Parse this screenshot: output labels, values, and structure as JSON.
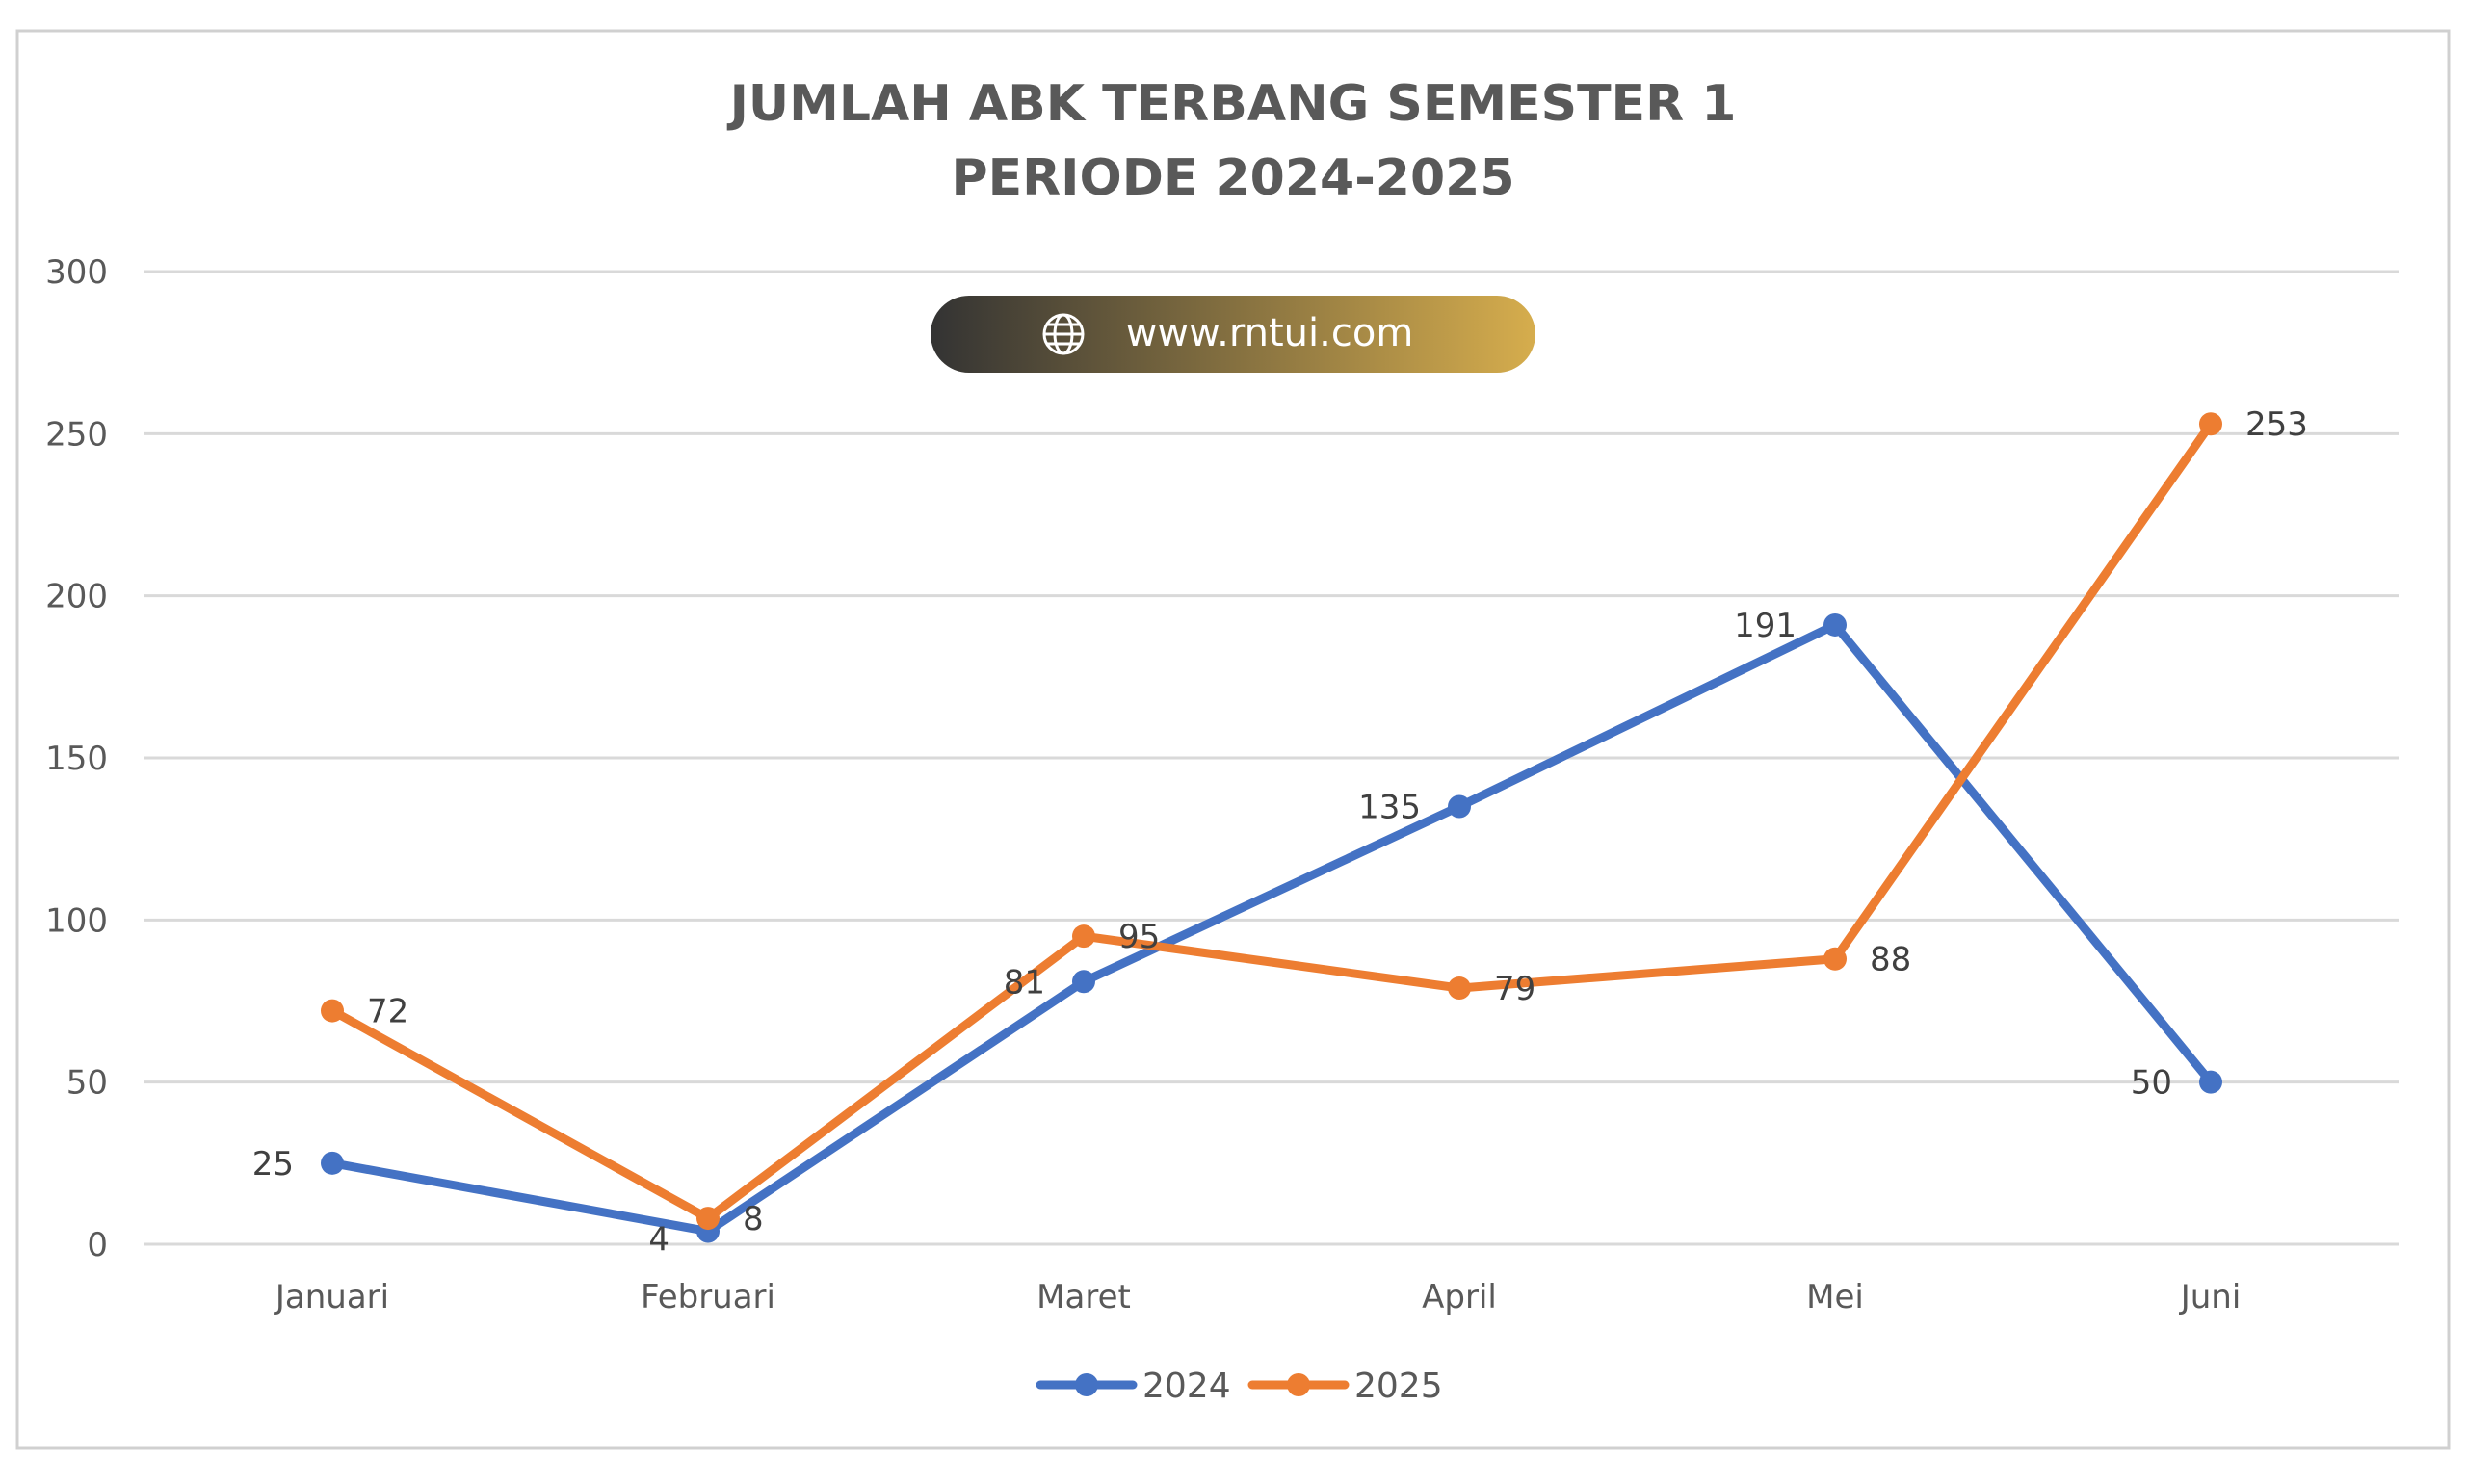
{
  "chart_data": {
    "type": "line",
    "title": [
      "JUMLAH ABK TERBANG SEMESTER 1",
      "PERIODE 2024-2025"
    ],
    "categories": [
      "Januari",
      "Februari",
      "Maret",
      "April",
      "Mei",
      "Juni"
    ],
    "series": [
      {
        "name": "2024",
        "color": "#4472C4",
        "values": [
          25,
          4,
          81,
          135,
          191,
          50
        ]
      },
      {
        "name": "2025",
        "color": "#ED7D31",
        "values": [
          72,
          8,
          95,
          79,
          88,
          253
        ]
      }
    ],
    "ylim": [
      0,
      300
    ],
    "yticks": [
      "0",
      "50",
      "100",
      "150",
      "200",
      "250",
      "300"
    ],
    "grid": true,
    "legend": "bottom",
    "xlabel": "",
    "ylabel": ""
  },
  "watermark": {
    "text": "www.rntui.com",
    "icon": "globe-icon",
    "gradient": [
      "#333333",
      "#D6AD4D"
    ]
  },
  "colors": {
    "grid": "#D9D9D9",
    "frame": "#D0D0D0"
  }
}
